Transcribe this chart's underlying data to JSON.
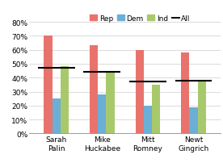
{
  "categories": [
    "Sarah\nPalin",
    "Mike\nHuckabee",
    "Mitt\nRomney",
    "Newt\nGingrich"
  ],
  "rep": [
    0.7,
    0.63,
    0.6,
    0.58
  ],
  "dem": [
    0.25,
    0.28,
    0.2,
    0.19
  ],
  "ind": [
    0.48,
    0.44,
    0.35,
    0.38
  ],
  "all": [
    0.47,
    0.44,
    0.37,
    0.38
  ],
  "rep_color": "#E8736C",
  "dem_color": "#6BAED6",
  "ind_color": "#A8C96B",
  "all_color": "#000000",
  "bar_width": 0.18,
  "ylim": [
    0,
    0.88
  ],
  "yticks": [
    0.0,
    0.1,
    0.2,
    0.3,
    0.4,
    0.5,
    0.6,
    0.7,
    0.8
  ],
  "tick_fontsize": 6.5,
  "legend_fontsize": 6.5,
  "background_color": "#ffffff"
}
